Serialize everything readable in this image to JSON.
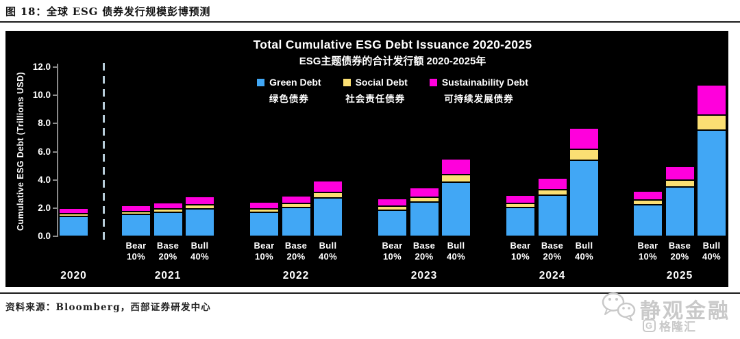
{
  "header": {
    "title": "图 18：全球 ESG 债券发行规模彭博预测"
  },
  "source": {
    "text": "资料来源：Bloomberg，西部证券研发中心"
  },
  "watermark": {
    "primary": "静观金融",
    "secondary": "格隆汇",
    "secondary_logo_letter": "G",
    "icon": "wechat-bubbles-icon",
    "color": "#c9c9c9"
  },
  "chart_data": {
    "type": "bar",
    "stacked": true,
    "title": "Total Cumulative ESG Debt Issuance 2020-2025",
    "subtitle": "ESG主题债券的合计发行额 2020-2025年",
    "ylabel": "Cumulative ESG Debt (Trillions USD)",
    "ylim": [
      0,
      12
    ],
    "ytick_step": 2,
    "ytick_labels": [
      "0.0",
      "2.0",
      "4.0",
      "6.0",
      "8.0",
      "10.0",
      "12.0"
    ],
    "grid": false,
    "background": "#000000",
    "legend_position": "top-center",
    "series": [
      {
        "key": "green",
        "label": "Green Debt",
        "label_cn": "绿色债券",
        "color": "#41A7F5"
      },
      {
        "key": "social",
        "label": "Social Debt",
        "label_cn": "社会责任债券",
        "color": "#FBDF73"
      },
      {
        "key": "sustainability",
        "label": "Sustainability Debt",
        "label_cn": "可持续发展债券",
        "color": "#FF00DC"
      }
    ],
    "groups": [
      {
        "year": "2020",
        "bars": [
          {
            "scenario": "",
            "pct": "",
            "values": {
              "green": 1.4,
              "social": 0.2,
              "sustainability": 0.4
            },
            "total": 2.0
          }
        ]
      },
      {
        "year": "2021",
        "bars": [
          {
            "scenario": "Bear",
            "pct": "10%",
            "values": {
              "green": 1.54,
              "social": 0.22,
              "sustainability": 0.44
            },
            "total": 2.2
          },
          {
            "scenario": "Base",
            "pct": "20%",
            "values": {
              "green": 1.68,
              "social": 0.24,
              "sustainability": 0.48
            },
            "total": 2.4
          },
          {
            "scenario": "Bull",
            "pct": "40%",
            "values": {
              "green": 1.96,
              "social": 0.28,
              "sustainability": 0.56
            },
            "total": 2.8
          }
        ]
      },
      {
        "year": "2022",
        "bars": [
          {
            "scenario": "Bear",
            "pct": "10%",
            "values": {
              "green": 1.69,
              "social": 0.24,
              "sustainability": 0.49
            },
            "total": 2.42
          },
          {
            "scenario": "Base",
            "pct": "20%",
            "values": {
              "green": 2.02,
              "social": 0.29,
              "sustainability": 0.57
            },
            "total": 2.88
          },
          {
            "scenario": "Bull",
            "pct": "40%",
            "values": {
              "green": 2.74,
              "social": 0.39,
              "sustainability": 0.79
            },
            "total": 3.92
          }
        ]
      },
      {
        "year": "2023",
        "bars": [
          {
            "scenario": "Bear",
            "pct": "10%",
            "values": {
              "green": 1.86,
              "social": 0.27,
              "sustainability": 0.53
            },
            "total": 2.66
          },
          {
            "scenario": "Base",
            "pct": "20%",
            "values": {
              "green": 2.42,
              "social": 0.35,
              "sustainability": 0.69
            },
            "total": 3.46
          },
          {
            "scenario": "Bull",
            "pct": "40%",
            "values": {
              "green": 3.84,
              "social": 0.55,
              "sustainability": 1.1
            },
            "total": 5.49
          }
        ]
      },
      {
        "year": "2024",
        "bars": [
          {
            "scenario": "Bear",
            "pct": "10%",
            "values": {
              "green": 2.05,
              "social": 0.29,
              "sustainability": 0.59
            },
            "total": 2.93
          },
          {
            "scenario": "Base",
            "pct": "20%",
            "values": {
              "green": 2.91,
              "social": 0.41,
              "sustainability": 0.83
            },
            "total": 4.15
          },
          {
            "scenario": "Bull",
            "pct": "40%",
            "values": {
              "green": 5.38,
              "social": 0.77,
              "sustainability": 1.53
            },
            "total": 7.68
          }
        ]
      },
      {
        "year": "2025",
        "bars": [
          {
            "scenario": "Bear",
            "pct": "10%",
            "values": {
              "green": 2.25,
              "social": 0.32,
              "sustainability": 0.65
            },
            "total": 3.22
          },
          {
            "scenario": "Base",
            "pct": "20%",
            "values": {
              "green": 3.49,
              "social": 0.5,
              "sustainability": 0.99
            },
            "total": 4.98
          },
          {
            "scenario": "Bull",
            "pct": "40%",
            "values": {
              "green": 7.53,
              "social": 1.08,
              "sustainability": 2.15
            },
            "total": 10.76
          }
        ]
      }
    ],
    "dashed_divider_after_first_group": true
  }
}
